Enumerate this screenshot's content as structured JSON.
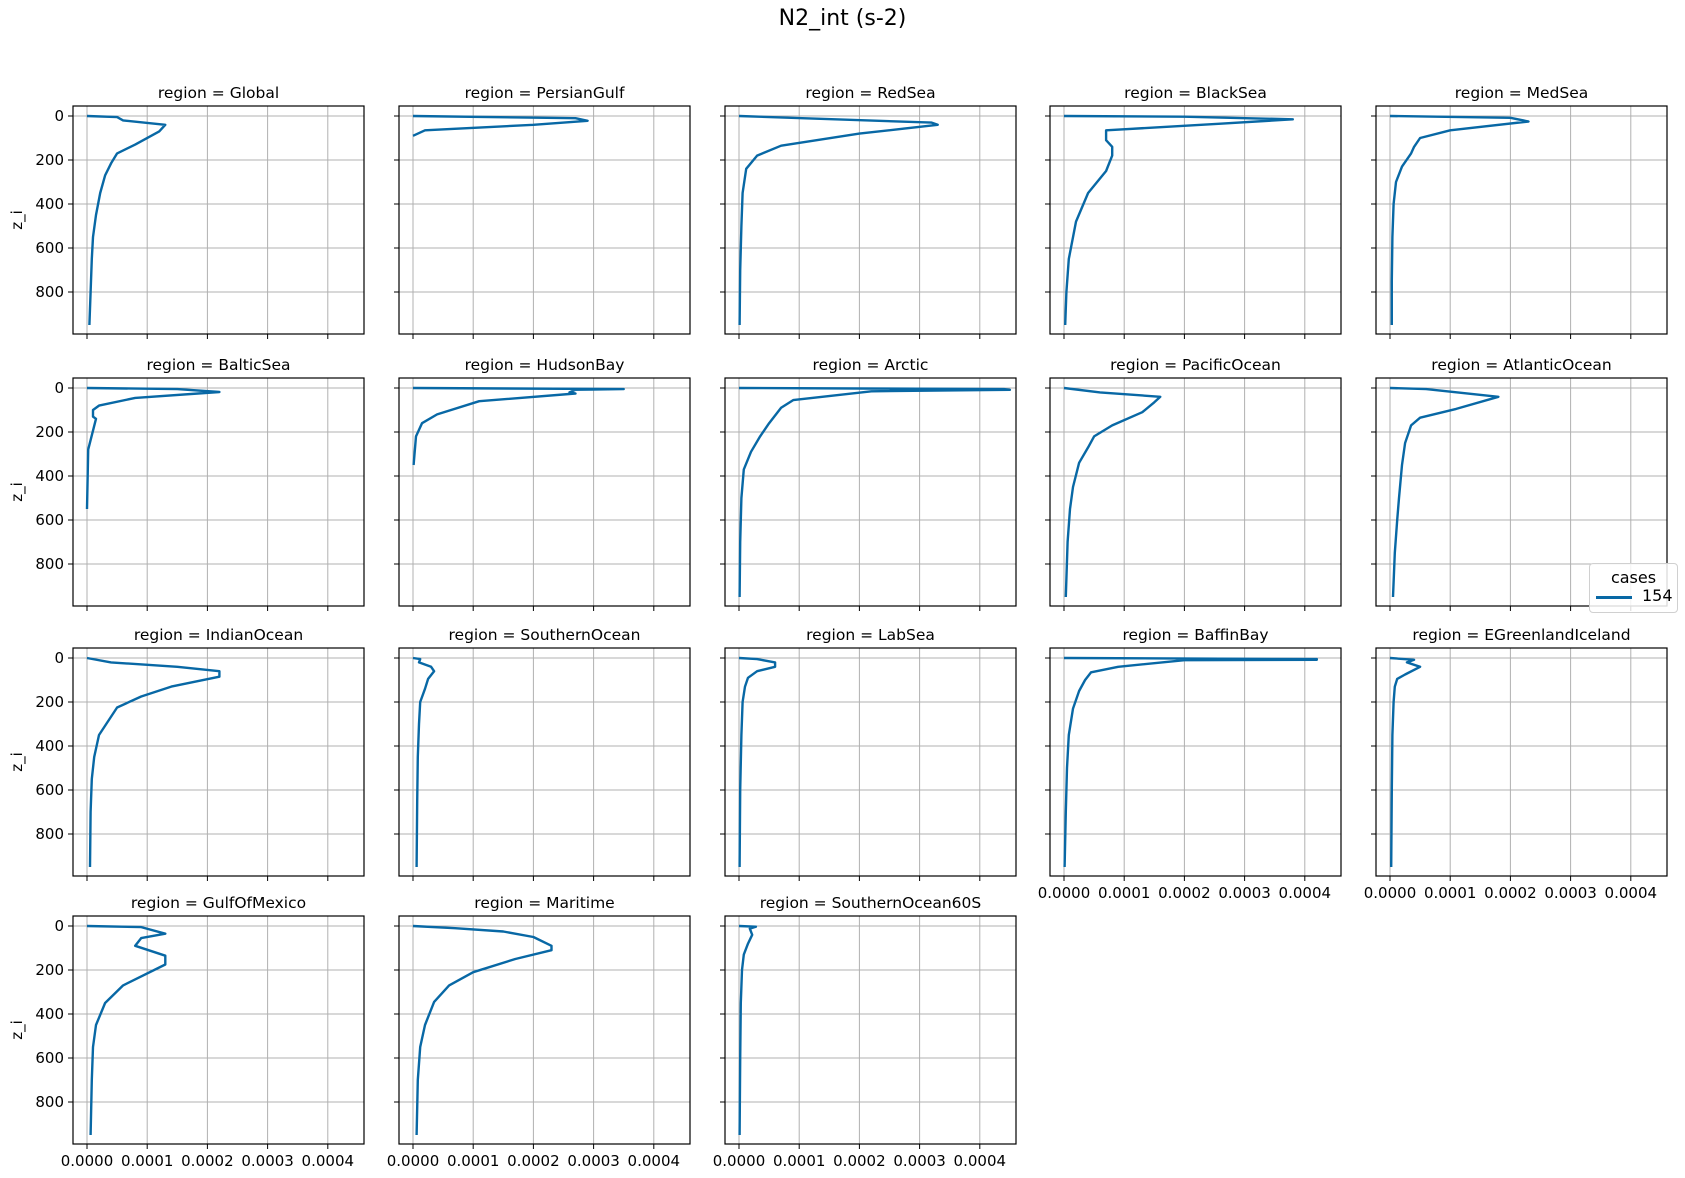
{
  "figure": {
    "title": "N2_int (s-2)",
    "line_color": "#0868a5",
    "grid_color": "#b0b0b0"
  },
  "legend": {
    "title": "cases",
    "entries": [
      {
        "label": "154",
        "color": "#0868a5"
      }
    ]
  },
  "chart_data": {
    "type": "line",
    "title": "N2_int (s-2)",
    "facet_by": "region",
    "xlabel": "",
    "ylabel": "z_i",
    "xlim": [
      -2.5e-05,
      0.00046
    ],
    "ylim": [
      1000,
      -45
    ],
    "y_inverted": true,
    "x_ticks": [
      "0.0000",
      "0.0001",
      "0.0002",
      "0.0003",
      "0.0004"
    ],
    "x_tick_values": [
      0,
      0.0001,
      0.0002,
      0.0003,
      0.0004
    ],
    "y_ticks": [
      "0",
      "200",
      "400",
      "600",
      "800"
    ],
    "y_tick_values": [
      0,
      200,
      400,
      600,
      800
    ],
    "grid": true,
    "legend_position": "right",
    "series_name": "154",
    "panels": [
      {
        "title": "region = Global",
        "x": [
          0,
          5e-05,
          6e-05,
          0.00013,
          0.00012,
          8e-05,
          5e-05,
          4e-05,
          3e-05,
          2.2e-05,
          1.5e-05,
          1e-05,
          8e-06,
          6e-06,
          4e-06
        ],
        "z": [
          0,
          5,
          20,
          40,
          70,
          130,
          170,
          215,
          270,
          350,
          450,
          550,
          650,
          800,
          950
        ]
      },
      {
        "title": "region = PersianGulf",
        "x": [
          0,
          0.00027,
          0.00029,
          0.0002,
          2e-05,
          0.0
        ],
        "z": [
          0,
          10,
          22,
          40,
          65,
          90
        ]
      },
      {
        "title": "region = RedSea",
        "x": [
          0,
          0.00032,
          0.00033,
          0.0002,
          7e-05,
          3e-05,
          1.2e-05,
          6e-06,
          4e-06,
          2e-06,
          1e-06
        ],
        "z": [
          0,
          30,
          40,
          80,
          135,
          180,
          240,
          350,
          500,
          700,
          950
        ]
      },
      {
        "title": "region = BlackSea",
        "x": [
          0,
          0.0002,
          0.00038,
          0.00026,
          7e-05,
          7e-05,
          8e-05,
          8e-05,
          7e-05,
          4e-05,
          2e-05,
          8e-06,
          4e-06,
          2e-06
        ],
        "z": [
          0,
          3,
          15,
          35,
          65,
          110,
          140,
          180,
          250,
          350,
          480,
          650,
          800,
          950
        ]
      },
      {
        "title": "region = MedSea",
        "x": [
          0,
          0.0002,
          0.00023,
          0.0001,
          5e-05,
          4e-05,
          3.5e-05,
          2e-05,
          1e-05,
          6e-06,
          4e-06,
          3e-06,
          3e-06
        ],
        "z": [
          0,
          8,
          25,
          65,
          100,
          140,
          170,
          230,
          300,
          400,
          550,
          750,
          950
        ]
      },
      {
        "title": "region = BalticSea",
        "x": [
          0,
          0.00015,
          0.00022,
          8e-05,
          2e-05,
          1e-05,
          1e-05,
          1.5e-05,
          2e-06,
          0.0
        ],
        "z": [
          0,
          5,
          18,
          45,
          80,
          100,
          130,
          140,
          280,
          550
        ]
      },
      {
        "title": "region = HudsonBay",
        "x": [
          0,
          0.00035,
          0.00027,
          0.00026,
          0.00027,
          0.00011,
          4e-05,
          1.5e-05,
          5e-06,
          1e-06
        ],
        "z": [
          0,
          5,
          8,
          20,
          25,
          60,
          120,
          160,
          220,
          350
        ]
      },
      {
        "title": "region = Arctic",
        "x": [
          0,
          0.00044,
          0.00045,
          0.00022,
          9e-05,
          7e-05,
          5e-05,
          3.5e-05,
          2e-05,
          8e-06,
          4e-06,
          2e-06,
          1e-06
        ],
        "z": [
          0,
          5,
          8,
          15,
          55,
          90,
          160,
          220,
          290,
          370,
          500,
          700,
          950
        ]
      },
      {
        "title": "region = PacificOcean",
        "x": [
          0,
          6e-05,
          0.00016,
          0.00015,
          0.00013,
          8e-05,
          5e-05,
          4e-05,
          2.5e-05,
          1.5e-05,
          1e-05,
          6e-06,
          3e-06
        ],
        "z": [
          0,
          20,
          40,
          65,
          110,
          170,
          220,
          270,
          340,
          450,
          550,
          700,
          950
        ]
      },
      {
        "title": "region = AtlanticOcean",
        "x": [
          0,
          6e-05,
          0.00018,
          0.00011,
          5e-05,
          3.5e-05,
          2.5e-05,
          2e-05,
          1.5e-05,
          1.2e-05,
          8e-06,
          5e-06
        ],
        "z": [
          0,
          5,
          40,
          95,
          135,
          170,
          250,
          350,
          500,
          600,
          750,
          950
        ]
      },
      {
        "title": "region = IndianOcean",
        "x": [
          0,
          4e-05,
          0.00015,
          0.00022,
          0.00022,
          0.00014,
          9e-05,
          5e-05,
          2e-05,
          1.2e-05,
          8e-06,
          6e-06,
          5e-06
        ],
        "z": [
          0,
          20,
          40,
          60,
          85,
          130,
          175,
          225,
          350,
          450,
          550,
          700,
          950
        ]
      },
      {
        "title": "region = SouthernOcean",
        "x": [
          0,
          1.2e-05,
          1e-05,
          3e-05,
          3.5e-05,
          2.5e-05,
          2e-05,
          1.2e-05,
          1e-05,
          8e-06,
          7e-06,
          6e-06
        ],
        "z": [
          0,
          5,
          20,
          40,
          60,
          95,
          140,
          200,
          300,
          450,
          650,
          950
        ]
      },
      {
        "title": "region = LabSea",
        "x": [
          0,
          3e-05,
          6e-05,
          6e-05,
          3e-05,
          1.5e-05,
          1e-05,
          6e-06,
          4e-06,
          2e-06,
          1e-06
        ],
        "z": [
          0,
          5,
          20,
          40,
          60,
          90,
          130,
          200,
          350,
          600,
          950
        ]
      },
      {
        "title": "region = BaffinBay",
        "x": [
          0,
          0.00042,
          0.00042,
          0.0002,
          9e-05,
          4.5e-05,
          3.5e-05,
          2.5e-05,
          1.5e-05,
          8e-06,
          5e-06,
          3e-06,
          1e-06
        ],
        "z": [
          0,
          5,
          8,
          10,
          40,
          65,
          100,
          150,
          230,
          350,
          500,
          700,
          950
        ]
      },
      {
        "title": "region = EGreenlandIceland",
        "x": [
          0,
          4e-05,
          2.8e-05,
          5e-05,
          2.5e-05,
          1.2e-05,
          8e-06,
          6e-06,
          4e-06,
          3e-06,
          2e-06
        ],
        "z": [
          0,
          8,
          20,
          40,
          75,
          95,
          130,
          200,
          350,
          600,
          950
        ]
      },
      {
        "title": "region = GulfOfMexico",
        "x": [
          0,
          9e-05,
          0.00013,
          9e-05,
          8e-05,
          0.00013,
          0.00013,
          6e-05,
          3e-05,
          1.5e-05,
          1e-05,
          8e-06,
          6e-06
        ],
        "z": [
          0,
          5,
          35,
          55,
          90,
          135,
          175,
          270,
          350,
          450,
          550,
          700,
          950
        ]
      },
      {
        "title": "region = Maritime",
        "x": [
          0,
          7e-05,
          0.00015,
          0.0002,
          0.00023,
          0.00023,
          0.00017,
          0.0001,
          6e-05,
          3.5e-05,
          2e-05,
          1.2e-05,
          8e-06,
          6e-06
        ],
        "z": [
          0,
          10,
          25,
          50,
          90,
          110,
          150,
          210,
          270,
          345,
          450,
          550,
          700,
          950
        ]
      },
      {
        "title": "region = SouthernOcean60S",
        "x": [
          0,
          2.8e-05,
          1.8e-05,
          2.2e-05,
          1.5e-05,
          8e-06,
          5e-06,
          3e-06,
          2e-06,
          1e-06
        ],
        "z": [
          0,
          3,
          12,
          40,
          80,
          130,
          200,
          350,
          600,
          950
        ]
      }
    ]
  }
}
